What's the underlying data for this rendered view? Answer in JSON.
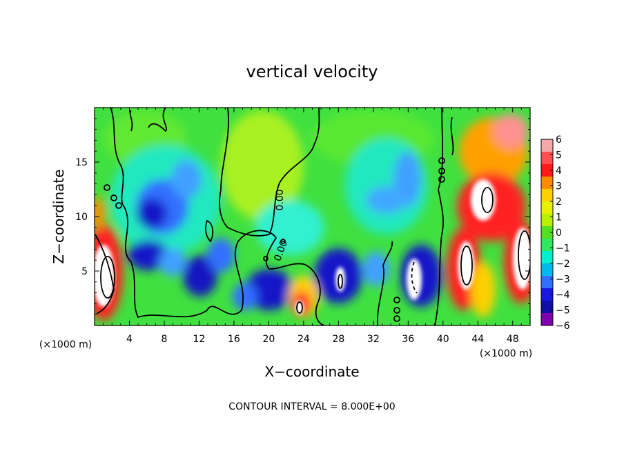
{
  "chart_data": {
    "type": "heatmap",
    "title": "vertical velocity",
    "xlabel": "X−coordinate",
    "ylabel": "Z−coordinate",
    "x_unit_label": "(×1000 m)",
    "y_unit_label": "(×1000 m)",
    "xlim": [
      0,
      50
    ],
    "ylim": [
      0,
      20
    ],
    "x_ticks": [
      4,
      8,
      12,
      16,
      20,
      24,
      28,
      32,
      36,
      40,
      44,
      48
    ],
    "y_ticks": [
      5,
      10,
      15
    ],
    "colorbar": {
      "ticks": [
        "6",
        "5",
        "4",
        "3",
        "2",
        "1",
        "0",
        "−1",
        "−2",
        "−3",
        "−4",
        "−5",
        "−6"
      ],
      "range": [
        -6,
        6
      ],
      "colors": [
        "#f4a8a8",
        "#ff5050",
        "#ff1a1a",
        "#ff8c00",
        "#ffd000",
        "#e8f000",
        "#b8f000",
        "#52e020",
        "#30e860",
        "#00f0d0",
        "#00b8f0",
        "#3070ff",
        "#1818e0",
        "#1010a8",
        "#8000b0"
      ]
    },
    "contour_labels": [
      "0.00",
      "0.00"
    ],
    "footer": "CONTOUR INTERVAL = 8.000E+00"
  }
}
